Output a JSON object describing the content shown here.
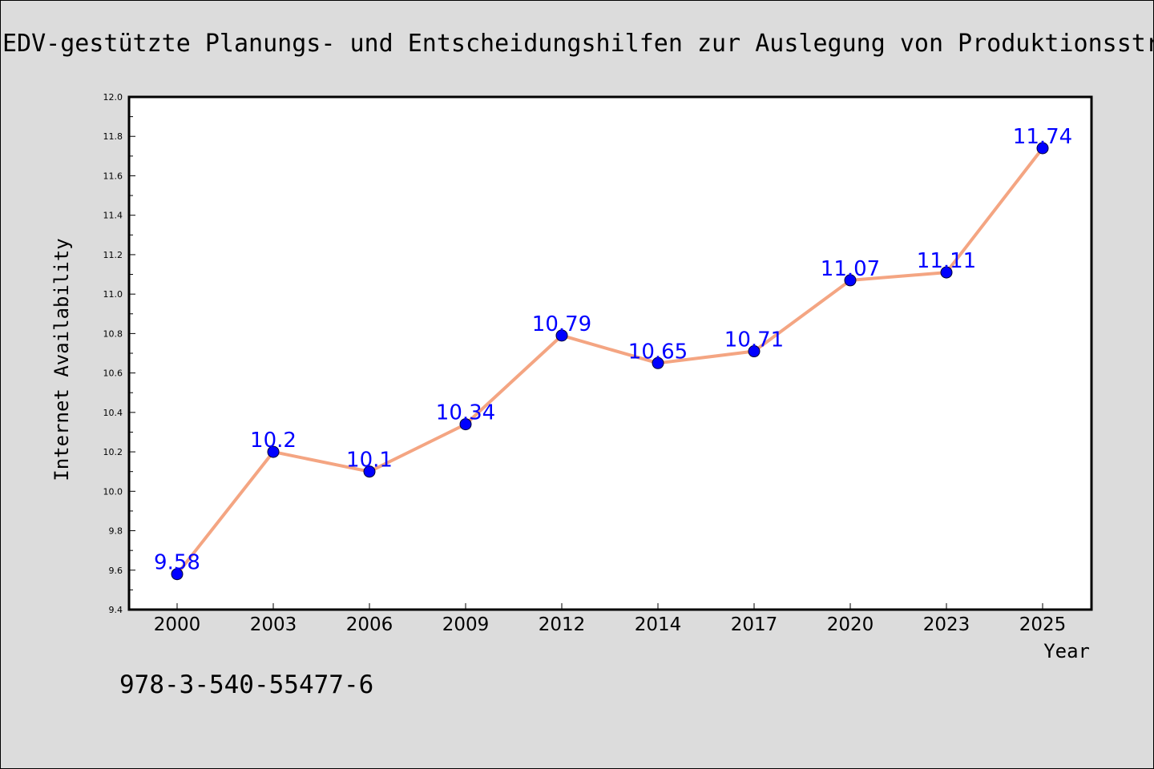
{
  "chart_data": {
    "type": "line",
    "title": "EDV-gestützte Planungs- und Entscheidungshilfen zur Auslegung von Produktionsstrukturen",
    "xlabel": "Year",
    "ylabel": "Internet Availability",
    "categories": [
      "2000",
      "2003",
      "2006",
      "2009",
      "2012",
      "2014",
      "2017",
      "2020",
      "2023",
      "2025"
    ],
    "values": [
      9.58,
      10.2,
      10.1,
      10.34,
      10.79,
      10.65,
      10.71,
      11.07,
      11.11,
      11.74
    ],
    "data_labels": [
      "9.58",
      "10.2",
      "10.1",
      "10.34",
      "10.79",
      "10.65",
      "10.71",
      "11.07",
      "11.11",
      "11.74"
    ],
    "ylim": [
      9.4,
      12.0
    ],
    "y_ticks": [
      "9.4",
      "9.6",
      "9.8",
      "10.0",
      "10.2",
      "10.4",
      "10.6",
      "10.8",
      "11.0",
      "11.2",
      "11.4",
      "11.6",
      "11.8",
      "12.0"
    ],
    "grid": false,
    "line_color": "#f4a582",
    "marker_color": "#0000ff",
    "label_color": "#0000ff",
    "annotation": "978-3-540-55477-6"
  }
}
